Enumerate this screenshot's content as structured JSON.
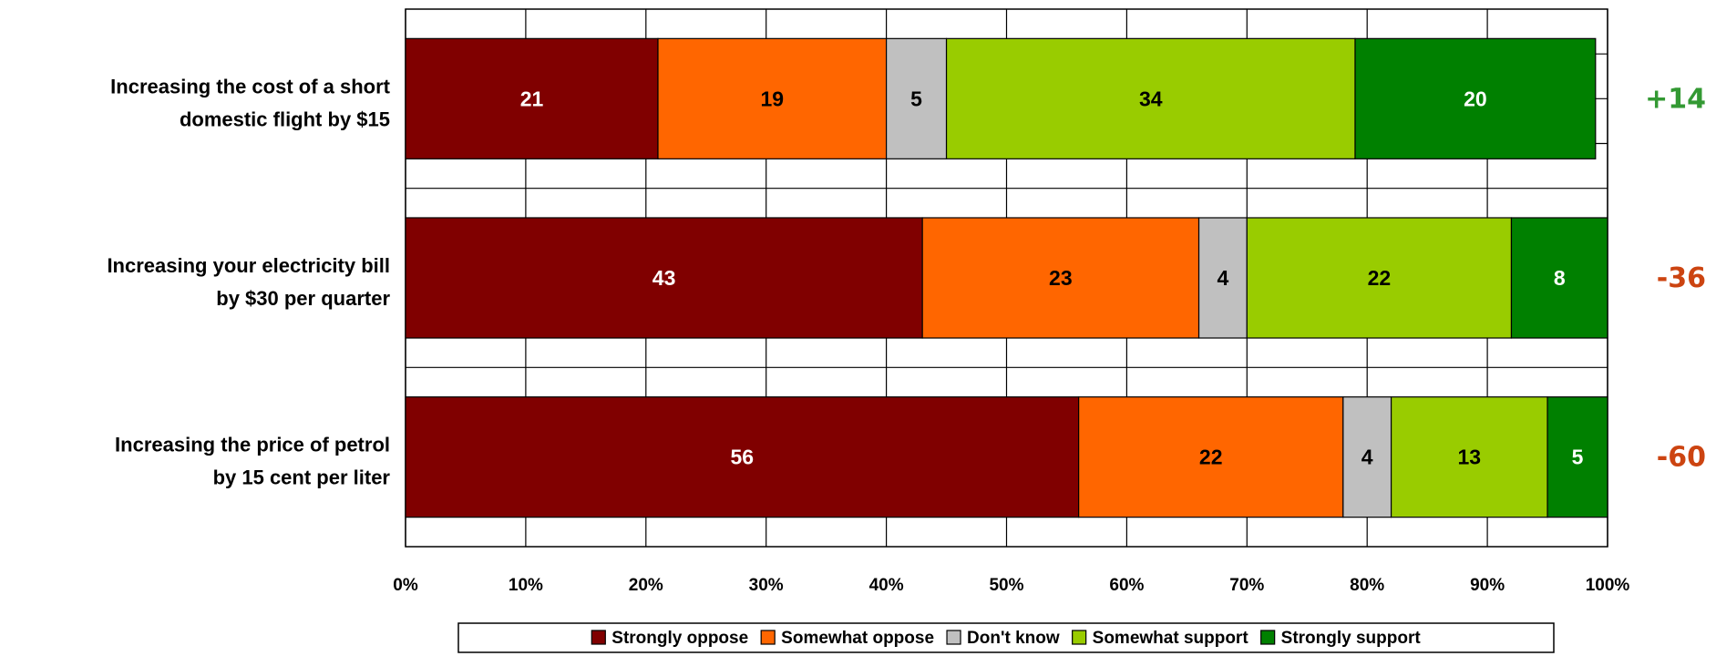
{
  "chart_data": {
    "type": "bar",
    "orientation": "horizontal",
    "stacked": true,
    "normalized": true,
    "categories": [
      [
        "Increasing the cost of a short",
        "domestic flight by $15"
      ],
      [
        "Increasing your electricity bill",
        "by $30 per quarter"
      ],
      [
        "Increasing the price of petrol",
        "by 15 cent per liter"
      ]
    ],
    "series": [
      {
        "name": "Strongly oppose",
        "color": "#800000",
        "text_color": "#ffffff",
        "values": [
          21,
          43,
          56
        ]
      },
      {
        "name": "Somewhat oppose",
        "color": "#ff6600",
        "text_color": "#000000",
        "values": [
          19,
          23,
          22
        ]
      },
      {
        "name": "Don't know",
        "color": "#c0c0c0",
        "text_color": "#000000",
        "values": [
          5,
          4,
          4
        ]
      },
      {
        "name": "Somewhat support",
        "color": "#99cc00",
        "text_color": "#000000",
        "values": [
          34,
          22,
          13
        ]
      },
      {
        "name": "Strongly support",
        "color": "#008000",
        "text_color": "#ffffff",
        "values": [
          20,
          8,
          5
        ]
      }
    ],
    "net_values": [
      {
        "text": "+14",
        "color": "#339933"
      },
      {
        "text": "-36",
        "color": "#cc4411"
      },
      {
        "text": "-60",
        "color": "#cc4411"
      }
    ],
    "x_ticks": [
      "0%",
      "10%",
      "20%",
      "30%",
      "40%",
      "50%",
      "60%",
      "70%",
      "80%",
      "90%",
      "100%"
    ],
    "xlim": [
      0,
      100
    ],
    "grid": true,
    "legend_position": "bottom",
    "title": "",
    "xlabel": "",
    "ylabel": ""
  }
}
